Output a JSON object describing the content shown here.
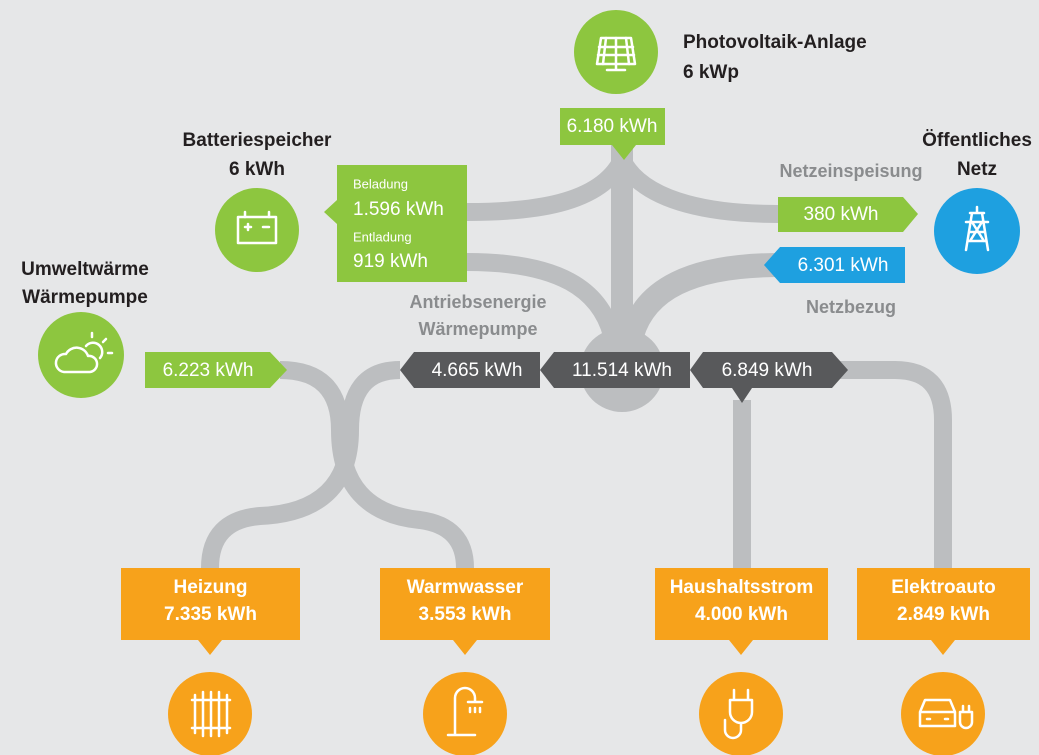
{
  "pv": {
    "title": "Photovoltaik-Anlage",
    "subtitle": "6 kWp",
    "value": "6.180 kWh"
  },
  "battery": {
    "title": "Batteriespeicher",
    "subtitle": "6 kWh",
    "charge_label": "Beladung",
    "charge": "1.596 kWh",
    "discharge_label": "Entladung",
    "discharge": "919 kWh"
  },
  "grid": {
    "title": "Öffentliches",
    "subtitle": "Netz",
    "feed_in_label": "Netzeinspeisung",
    "feed_in": "380 kWh",
    "draw_label": "Netzbezug",
    "draw": "6.301 kWh"
  },
  "ambient": {
    "title": "Umweltwärme",
    "subtitle": "Wärmepumpe",
    "value": "6.223 kWh"
  },
  "hub": {
    "heat_pump_label": [
      "Antriebsenergie",
      "Wärmepumpe"
    ],
    "heat_pump": "4.665 kWh",
    "total": "11.514 kWh",
    "consumers": "6.849 kWh"
  },
  "consumers": [
    {
      "name": "Heizung",
      "value": "7.335 kWh"
    },
    {
      "name": "Warmwasser",
      "value": "3.553 kWh"
    },
    {
      "name": "Haushaltsstrom",
      "value": "4.000 kWh"
    },
    {
      "name": "Elektroauto",
      "value": "2.849 kWh"
    }
  ]
}
